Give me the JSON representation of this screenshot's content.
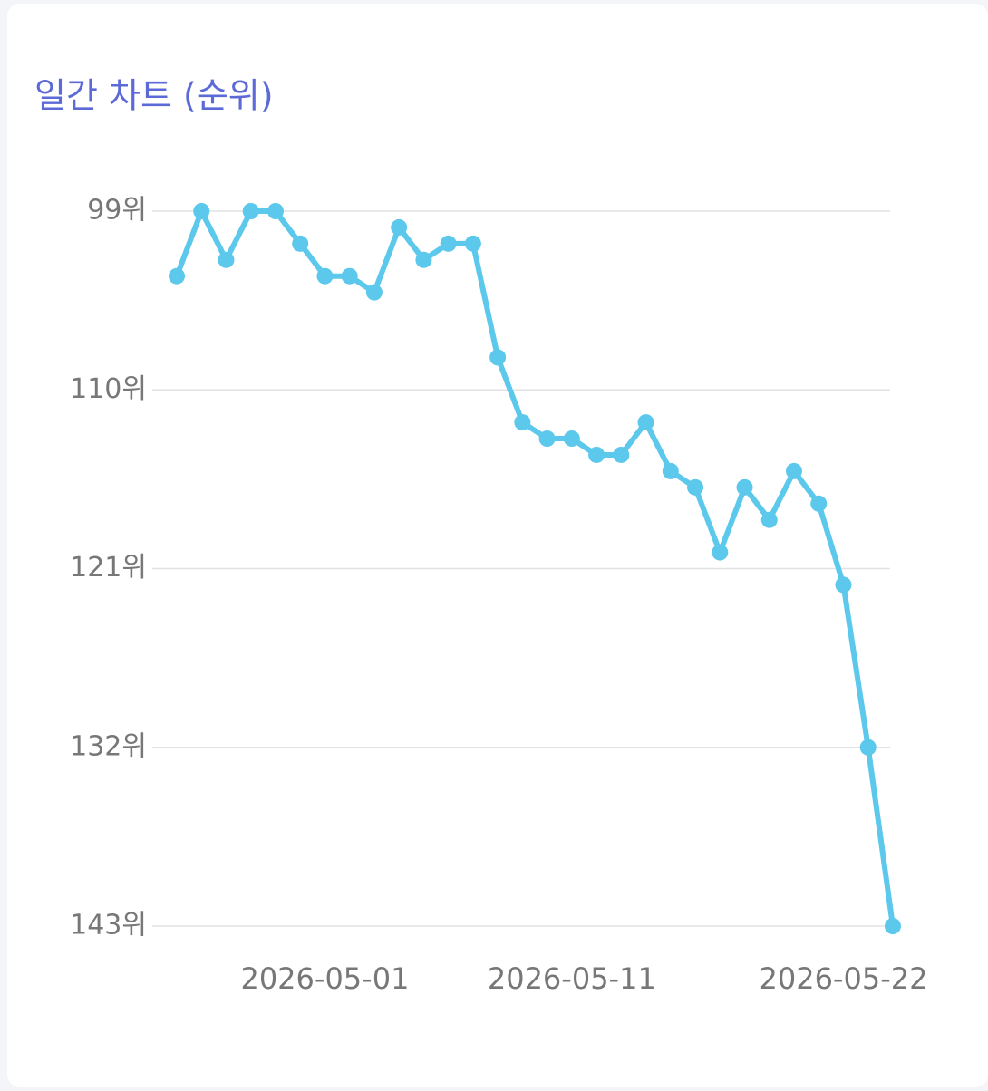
{
  "chart_data": {
    "type": "line",
    "title": "일간 차트 (순위)",
    "categories": [
      null,
      null,
      null,
      null,
      null,
      null,
      "2026-05-01",
      null,
      null,
      null,
      null,
      null,
      null,
      null,
      null,
      null,
      "2026-05-11",
      null,
      null,
      null,
      null,
      null,
      null,
      null,
      null,
      null,
      null,
      "2026-05-22",
      null,
      null
    ],
    "values": [
      103,
      99,
      102,
      99,
      99,
      101,
      103,
      103,
      104,
      100,
      102,
      101,
      101,
      108,
      112,
      113,
      113,
      114,
      114,
      112,
      115,
      116,
      120,
      116,
      118,
      115,
      117,
      122,
      132,
      143
    ],
    "color": "#5bc8ec",
    "ylim": [
      99,
      143
    ],
    "invert_y": true,
    "yticks": [
      {
        "value": 99,
        "label": "99위"
      },
      {
        "value": 110,
        "label": "110위"
      },
      {
        "value": 121,
        "label": "121위"
      },
      {
        "value": 132,
        "label": "132위"
      },
      {
        "value": 143,
        "label": "143위"
      }
    ],
    "grid": true
  }
}
